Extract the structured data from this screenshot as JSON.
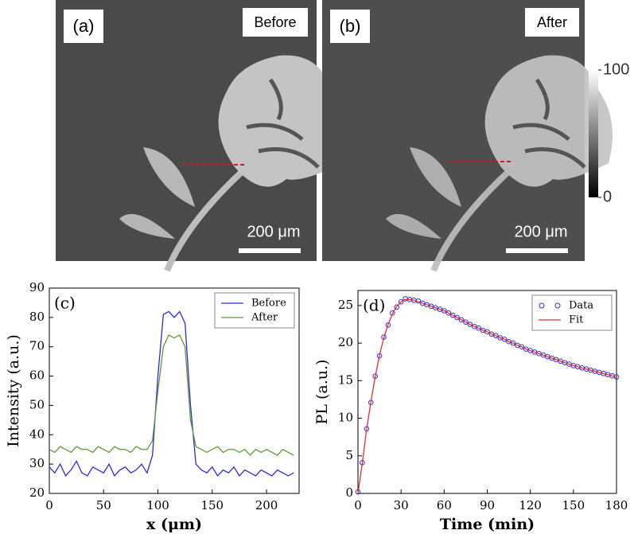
{
  "images": [
    {
      "label": "(a)",
      "caption": "Before",
      "scale_bar": "200 μm"
    },
    {
      "label": "(b)",
      "caption": "After",
      "scale_bar": "200 μm"
    }
  ],
  "colorbar": {
    "ticks": [
      0,
      100
    ],
    "lim": [
      0,
      100
    ]
  },
  "chart_data": [
    {
      "type": "line",
      "label": "(c)",
      "xlabel": "x (μm)",
      "ylabel": "Intensity (a.u.)",
      "x": [
        0,
        5,
        10,
        15,
        20,
        25,
        30,
        35,
        40,
        45,
        50,
        55,
        60,
        65,
        70,
        75,
        80,
        85,
        90,
        95,
        100,
        105,
        110,
        115,
        120,
        125,
        130,
        135,
        140,
        145,
        150,
        155,
        160,
        165,
        170,
        175,
        180,
        185,
        190,
        195,
        200,
        205,
        210,
        215,
        220,
        225
      ],
      "series": [
        {
          "name": "Before",
          "color": "#2a2ae0",
          "values": [
            29,
            27,
            30,
            26,
            28,
            31,
            27,
            26,
            29,
            28,
            27,
            30,
            26,
            28,
            29,
            27,
            28,
            30,
            27,
            33,
            60,
            81,
            82,
            80,
            82,
            78,
            50,
            30,
            28,
            27,
            29,
            26,
            28,
            27,
            29,
            26,
            28,
            27,
            26,
            28,
            27,
            26,
            28,
            27,
            26,
            27
          ]
        },
        {
          "name": "After",
          "color": "#5f9a30",
          "values": [
            35,
            34,
            36,
            35,
            34,
            36,
            35,
            35,
            34,
            36,
            35,
            34,
            36,
            35,
            35,
            34,
            36,
            35,
            35,
            38,
            55,
            70,
            74,
            73,
            74,
            70,
            45,
            36,
            35,
            34,
            35,
            36,
            34,
            35,
            35,
            34,
            35,
            33,
            35,
            34,
            35,
            34,
            33,
            35,
            34,
            33
          ]
        }
      ],
      "xlim": [
        0,
        230
      ],
      "ylim": [
        20,
        90
      ],
      "xticks": [
        0,
        50,
        100,
        150,
        200
      ],
      "yticks": [
        20,
        30,
        40,
        50,
        60,
        70,
        80,
        90
      ],
      "legend": "upper right"
    },
    {
      "type": "scatter",
      "label": "(d)",
      "xlabel": "Time (min)",
      "ylabel": "PL (a.u.)",
      "x": [
        0,
        3,
        6,
        9,
        12,
        15,
        18,
        21,
        24,
        27,
        30,
        33,
        36,
        39,
        42,
        45,
        48,
        51,
        54,
        57,
        60,
        63,
        66,
        69,
        72,
        75,
        78,
        81,
        84,
        87,
        90,
        93,
        96,
        99,
        102,
        105,
        108,
        111,
        114,
        117,
        120,
        123,
        126,
        129,
        132,
        135,
        138,
        141,
        144,
        147,
        150,
        153,
        156,
        159,
        162,
        165,
        168,
        171,
        174,
        177,
        180
      ],
      "series": [
        {
          "name": "Data",
          "color": "#3030d0",
          "style": "markers",
          "values": [
            0.2,
            4.1,
            8.6,
            12.1,
            15.6,
            18.3,
            20.8,
            22.4,
            24,
            24.8,
            25.5,
            25.9,
            25.8,
            25.7,
            25.6,
            25.3,
            25.1,
            24.9,
            24.7,
            24.5,
            24.3,
            24,
            23.7,
            23.4,
            23.1,
            22.8,
            22.5,
            22.2,
            22,
            21.7,
            21.5,
            21.2,
            21,
            20.7,
            20.5,
            20.2,
            20,
            19.7,
            19.5,
            19.2,
            19,
            18.8,
            18.6,
            18.4,
            18.2,
            18,
            17.8,
            17.6,
            17.4,
            17.2,
            17,
            16.85,
            16.7,
            16.55,
            16.4,
            16.25,
            16.1,
            15.95,
            15.8,
            15.65,
            15.5
          ]
        },
        {
          "name": "Fit",
          "color": "#e03030",
          "style": "line",
          "values": [
            0,
            4,
            8.5,
            12.2,
            15.5,
            18.4,
            20.7,
            22.5,
            23.9,
            24.9,
            25.5,
            25.8,
            25.8,
            25.7,
            25.5,
            25.3,
            25.1,
            24.9,
            24.7,
            24.5,
            24.3,
            24,
            23.7,
            23.4,
            23.1,
            22.8,
            22.5,
            22.2,
            22,
            21.7,
            21.5,
            21.2,
            21,
            20.7,
            20.5,
            20.2,
            20,
            19.7,
            19.5,
            19.2,
            19,
            18.8,
            18.6,
            18.4,
            18.2,
            18,
            17.8,
            17.6,
            17.4,
            17.2,
            17,
            16.85,
            16.7,
            16.55,
            16.4,
            16.25,
            16.1,
            15.95,
            15.8,
            15.65,
            15.4
          ]
        }
      ],
      "xlim": [
        0,
        180
      ],
      "ylim": [
        0,
        27
      ],
      "xticks": [
        0,
        30,
        60,
        90,
        120,
        150,
        180
      ],
      "yticks": [
        0,
        5,
        10,
        15,
        20,
        25
      ],
      "legend": "upper right"
    }
  ]
}
